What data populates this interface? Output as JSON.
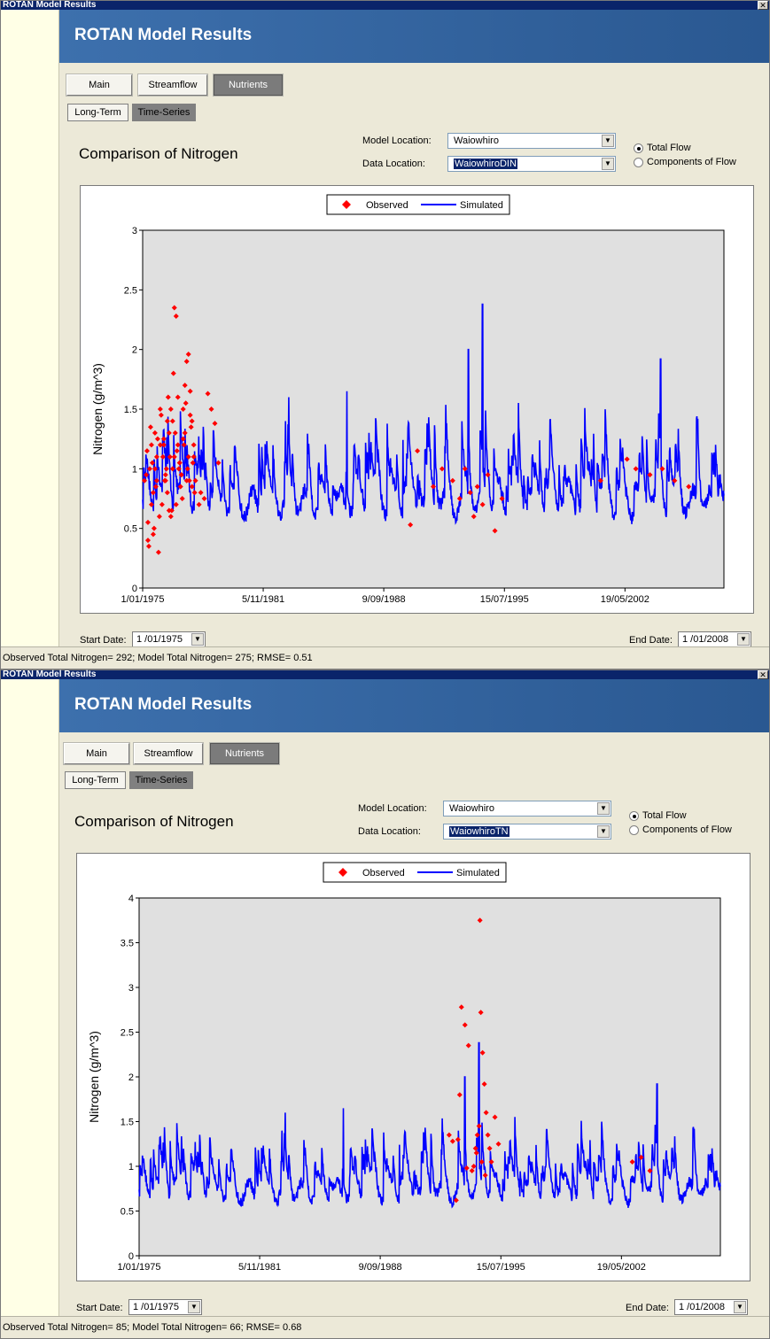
{
  "windows": [
    {
      "title": "ROTAN Model Results",
      "close": "✕",
      "banner": "ROTAN Model Results",
      "tabs": [
        "Main",
        "Streamflow",
        "Nutrients"
      ],
      "active_tab": "Nutrients",
      "subtabs": [
        "Long-Term",
        "Time-Series"
      ],
      "active_subtab": "Time-Series",
      "heading": "Comparison of Nitrogen",
      "model_location_label": "Model Location:",
      "model_location_value": "Waiowhiro",
      "data_location_label": "Data Location:",
      "data_location_value": "WaiowhiroDIN",
      "radio_total": "Total Flow",
      "radio_components": "Components of Flow",
      "radio_selected": "Total Flow",
      "start_label": "Start Date:",
      "start_value": "1 /01/1975",
      "end_label": "End Date:",
      "end_value": "1 /01/2008",
      "status": "Observed Total Nitrogen= 292; Model Total Nitrogen= 275; RMSE= 0.51",
      "chart_data": {
        "type": "line",
        "ylabel": "Nitrogen (g/m^3)",
        "xlabel": "",
        "ylim": [
          0,
          3
        ],
        "yticks": [
          "0",
          "0.5",
          "1",
          "1.5",
          "2",
          "2.5",
          "3"
        ],
        "xticks": [
          "1/01/1975",
          "5/11/1981",
          "9/09/1988",
          "15/07/1995",
          "19/05/2002"
        ],
        "xlim": [
          "1975-01-01",
          "2008-01-01"
        ],
        "legend": [
          "Observed",
          "Simulated"
        ],
        "legend_position": "top-center",
        "series_colors": {
          "Observed": "#ff0000",
          "Simulated": "#0000ff"
        },
        "observed": {
          "x": [
            1975.1,
            1975.2,
            1975.3,
            1975.35,
            1975.4,
            1975.5,
            1975.6,
            1975.65,
            1975.7,
            1975.8,
            1975.9,
            1976.0,
            1976.1,
            1976.15,
            1976.2,
            1976.3,
            1976.4,
            1976.45,
            1976.5,
            1976.6,
            1976.7,
            1976.75,
            1976.8,
            1976.9,
            1977.0,
            1977.1,
            1977.2,
            1977.3,
            1977.4,
            1977.5,
            1977.6,
            1977.7,
            1977.8,
            1977.9,
            1978.0,
            1978.2,
            1978.3,
            1978.5,
            1978.7,
            1978.9,
            1979.1,
            1979.3,
            1975.25,
            1975.45,
            1975.55,
            1975.75,
            1975.85,
            1975.95,
            1976.05,
            1976.25,
            1976.35,
            1976.55,
            1976.65,
            1976.85,
            1976.95,
            1977.05,
            1977.15,
            1977.25,
            1977.35,
            1977.45,
            1977.55,
            1977.65,
            1977.75,
            1977.85,
            1977.95,
            1975.3,
            1975.5,
            1975.7,
            1976.2,
            1976.4,
            1976.6,
            1976.8,
            1977.0,
            1977.2,
            1977.4,
            1977.6,
            1977.8,
            1975.6,
            1975.8,
            1976.0,
            1976.3,
            1976.5,
            1976.7,
            1976.9,
            1977.1,
            1977.3,
            1977.5,
            1977.7,
            1977.9,
            1990.2,
            1990.6,
            1991.5,
            1992.0,
            1992.6,
            1993.0,
            1993.3,
            1993.6,
            1993.8,
            1994.0,
            1994.3,
            1994.6,
            1995.0,
            1995.4,
            2001.0,
            2002.5,
            2003.0,
            2003.8,
            2004.5,
            2005.2,
            2006.0
          ],
          "y": [
            0.9,
            0.95,
            0.4,
            0.35,
            1.0,
            1.2,
            0.8,
            0.5,
            1.3,
            1.1,
            0.3,
            1.5,
            0.7,
            1.1,
            1.2,
            0.9,
            1.4,
            1.6,
            1.3,
            0.6,
            1.0,
            1.8,
            2.35,
            2.28,
            1.2,
            1.05,
            0.95,
            1.5,
            1.7,
            1.9,
            1.96,
            1.65,
            1.4,
            1.2,
            0.9,
            0.7,
            0.8,
            0.75,
            1.63,
            1.5,
            1.38,
            1.05,
            1.15,
            1.35,
            1.05,
            0.85,
            1.25,
            0.6,
            1.45,
            0.9,
            1.0,
            1.1,
            0.65,
            1.3,
            1.15,
            1.0,
            0.85,
            0.75,
            1.2,
            1.55,
            1.0,
            0.9,
            1.35,
            1.05,
            0.8,
            0.55,
            0.7,
            1.0,
            1.25,
            0.8,
            1.5,
            1.1,
            1.6,
            0.95,
            1.3,
            1.1,
            0.85,
            0.45,
            0.9,
            1.2,
            0.95,
            0.65,
            1.4,
            0.7,
            1.05,
            1.25,
            0.9,
            1.45,
            1.1,
            0.53,
            1.15,
            0.85,
            1.0,
            0.9,
            0.75,
            1.0,
            0.8,
            0.6,
            0.85,
            0.7,
            0.95,
            0.48,
            0.75,
            0.9,
            1.08,
            1.0,
            0.95,
            1.0,
            0.9,
            0.85
          ],
          "note": "approximate"
        },
        "simulated": {
          "baseline": 0.7,
          "notable_peaks": [
            {
              "x": 1993.5,
              "y": 2.0
            },
            {
              "x": 1994.3,
              "y": 2.38
            },
            {
              "x": 2004.4,
              "y": 1.92
            },
            {
              "x": 1983.3,
              "y": 1.6
            },
            {
              "x": 1986.6,
              "y": 1.65
            }
          ]
        }
      }
    },
    {
      "title": "ROTAN Model Results",
      "close": "✕",
      "banner": "ROTAN Model Results",
      "tabs": [
        "Main",
        "Streamflow",
        "Nutrients"
      ],
      "active_tab": "Nutrients",
      "subtabs": [
        "Long-Term",
        "Time-Series"
      ],
      "active_subtab": "Time-Series",
      "heading": "Comparison of Nitrogen",
      "model_location_label": "Model Location:",
      "model_location_value": "Waiowhiro",
      "data_location_label": "Data Location:",
      "data_location_value": "WaiowhiroTN",
      "radio_total": "Total Flow",
      "radio_components": "Components of Flow",
      "radio_selected": "Total Flow",
      "start_label": "Start Date:",
      "start_value": "1 /01/1975",
      "end_label": "End Date:",
      "end_value": "1 /01/2008",
      "status": "Observed Total Nitrogen= 85; Model Total Nitrogen= 66; RMSE= 0.68",
      "chart_data": {
        "type": "line",
        "ylabel": "Nitrogen (g/m^3)",
        "xlabel": "",
        "ylim": [
          0,
          4
        ],
        "yticks": [
          "0",
          "0.5",
          "1",
          "1.5",
          "2",
          "2.5",
          "3",
          "3.5",
          "4"
        ],
        "xticks": [
          "1/01/1975",
          "5/11/1981",
          "9/09/1988",
          "15/07/1995",
          "19/05/2002"
        ],
        "xlim": [
          "1975-01-01",
          "2008-01-01"
        ],
        "legend": [
          "Observed",
          "Simulated"
        ],
        "legend_position": "top-center",
        "series_colors": {
          "Observed": "#ff0000",
          "Simulated": "#0000ff"
        },
        "observed": {
          "x": [
            1992.6,
            1992.8,
            1993.0,
            1993.2,
            1993.3,
            1993.5,
            1993.7,
            1993.9,
            1994.0,
            1994.1,
            1994.2,
            1994.3,
            1994.35,
            1994.4,
            1994.5,
            1994.6,
            1994.7,
            1994.8,
            1994.9,
            1995.0,
            1995.2,
            1995.4,
            1993.1,
            1993.6,
            1994.15,
            1994.45,
            1994.65,
            2003.0,
            2003.5,
            2004.0
          ],
          "y": [
            1.35,
            1.28,
            0.62,
            1.8,
            2.78,
            2.58,
            2.35,
            0.95,
            1.0,
            1.2,
            1.35,
            1.45,
            3.75,
            2.72,
            2.27,
            1.92,
            1.6,
            1.35,
            1.2,
            1.05,
            1.55,
            1.25,
            1.3,
            0.98,
            1.15,
            1.05,
            0.9,
            1.05,
            1.1,
            0.95
          ],
          "note": "approximate"
        },
        "simulated": {
          "baseline": 0.7,
          "notable_peaks": [
            {
              "x": 1993.5,
              "y": 2.0
            },
            {
              "x": 1994.3,
              "y": 2.38
            },
            {
              "x": 2004.4,
              "y": 1.92
            },
            {
              "x": 1983.3,
              "y": 1.6
            },
            {
              "x": 1986.6,
              "y": 1.65
            }
          ]
        }
      }
    }
  ]
}
